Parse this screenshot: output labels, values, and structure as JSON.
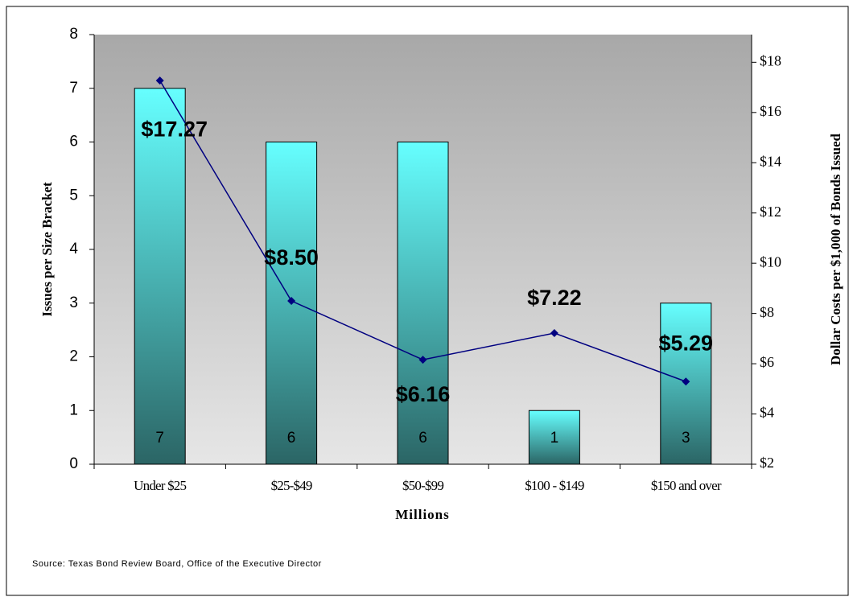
{
  "chart_data": {
    "type": "combo",
    "categories": [
      "Under $25",
      "$25-$49",
      "$50-$99",
      "$100 - $149",
      "$150 and over"
    ],
    "series": [
      {
        "name": "Issues per Size Bracket",
        "type": "bar",
        "color": "#66ffff",
        "values": [
          7,
          6,
          6,
          1,
          3
        ]
      },
      {
        "name": "Dollar Costs per $1,000 of Bonds Issued",
        "type": "line",
        "axis": "y2",
        "color": "#000080",
        "values": [
          17.27,
          8.5,
          6.16,
          7.22,
          5.29
        ],
        "value_labels": [
          "$17.27",
          "$8.50",
          "$6.16",
          "$7.22",
          "$5.29"
        ]
      }
    ],
    "ylabel": "Issues per Size Bracket",
    "y2label": "Dollar Costs per $1,000 of Bonds Issued",
    "xlabel": "Millions",
    "source": "Source: Texas Bond Review Board, Office of the Executive Director",
    "ylim": [
      0,
      8
    ],
    "yticks": [
      0,
      1,
      2,
      3,
      4,
      5,
      6,
      7,
      8
    ],
    "y2lim": [
      2,
      19.1
    ],
    "y2ticks": [
      {
        "value": 2,
        "label": "$2"
      },
      {
        "value": 4,
        "label": "$4"
      },
      {
        "value": 6,
        "label": "$6"
      },
      {
        "value": 8,
        "label": "$8"
      },
      {
        "value": 10,
        "label": "$10"
      },
      {
        "value": 12,
        "label": "$12"
      },
      {
        "value": 14,
        "label": "$14"
      },
      {
        "value": 16,
        "label": "$16"
      },
      {
        "value": 18,
        "label": "$18"
      }
    ]
  }
}
